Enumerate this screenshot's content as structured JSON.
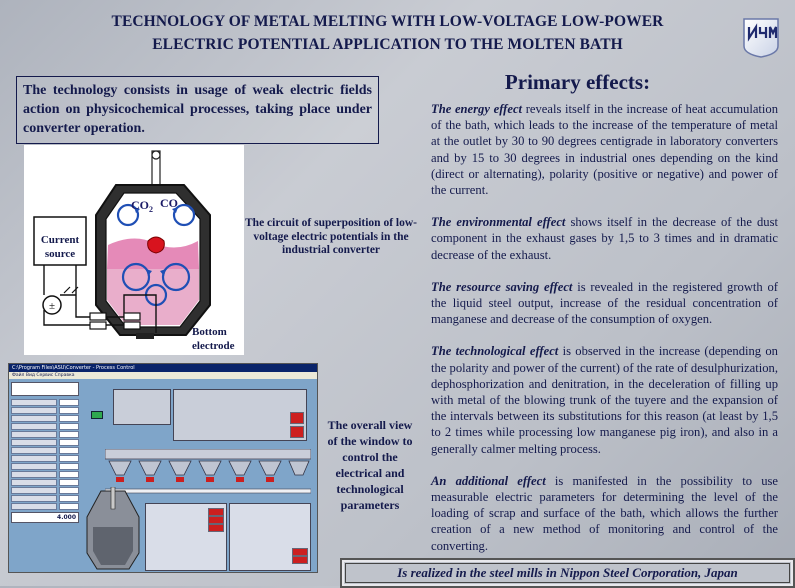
{
  "title": {
    "line1": "TECHNOLOGY OF METAL MELTING WITH LOW-VOLTAGE LOW-POWER",
    "line2": "ELECTRIC POTENTIAL  APPLICATION TO THE MOLTEN BATH"
  },
  "logo": {
    "icon": "institute-logo-icon",
    "text": "ИЧМ"
  },
  "intro": "The technology consists in usage of weak electric fields action on physicochemical processes, taking place under converter operation.",
  "diagram": {
    "co2": "CO",
    "co2_sub": "2",
    "co": "CO",
    "current_source": [
      "Current",
      "source"
    ],
    "bottom_electrode": [
      "Bottom",
      "electrode"
    ]
  },
  "diagram_caption": "The circuit of superposition of low-voltage electric potentials in the industrial converter",
  "screen_caption": "The overall view of the window to control the electrical and technological parameters",
  "effects_heading": "Primary effects:",
  "effects": [
    {
      "lead": "The energy effect",
      "text": " reveals itself in the increase of heat accumulation of the bath, which leads to the increase of the temperature of metal at the outlet by 30 to 90 degrees centigrade in laboratory converters and by 15 to 30 degrees in industrial ones depending on the kind (direct or alternating), polarity (positive or negative) and power of the current."
    },
    {
      "lead": "The environmental effect",
      "text": " shows itself in the decrease of the dust component in the exhaust gases by 1,5 to 3 times and in dramatic decrease of the exhaust."
    },
    {
      "lead": "The resource saving effect",
      "text": " is revealed in the registered growth of the liquid steel output, increase of the residual concentration of manganese and decrease of the consumption of oxygen."
    },
    {
      "lead": "The technological effect",
      "text": " is observed in the increase (depending on the polarity and power of the current) of the rate of desulphurization, dephosphorization and denitration, in the deceleration of filling up with metal of the blowing trunk of the tuyere and the expansion of the intervals between its substitutions for this reason (at least by 1,5 to 2 times while processing low manganese pig iron), and also in a generally calmer melting process."
    },
    {
      "lead": "An additional effect",
      "text": " is manifested in the possibility to use measurable electric parameters for determining the level of the loading of scrap and surface of the bath, which allows the further creation of a new method of monitoring and control of the converting."
    }
  ],
  "footer": "Is realized in the steel mills in Nippon Steel Corporation, Japan",
  "screen": {
    "window_title": "C:\\Program Files\\ASU\\Converter - Process Control",
    "menu": "Файл  Вид  Сервис  Справка",
    "readout": "4.000"
  },
  "colors": {
    "text": "#141a4c",
    "slag": "#e58ab8",
    "metal": "#d8131e",
    "lining": "#4b4b4b",
    "screen_bg": "#7fa5c9",
    "alarm": "#cc1f1f"
  }
}
